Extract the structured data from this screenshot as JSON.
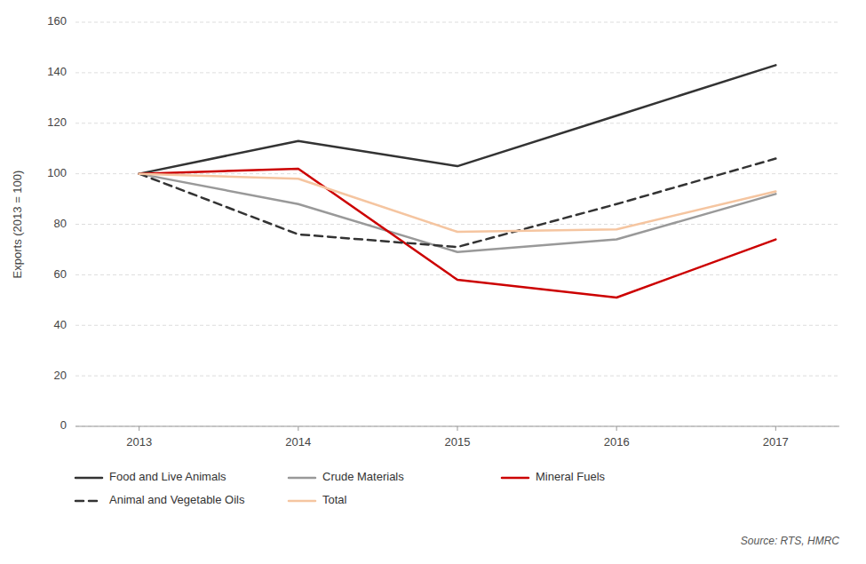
{
  "chart_data": {
    "type": "line",
    "ylabel": "Exports (2013 = 100)",
    "x": [
      2013,
      2014,
      2015,
      2016,
      2017
    ],
    "xlim": [
      2012.6,
      2017.4
    ],
    "xticks": [
      2013,
      2014,
      2015,
      2016,
      2017
    ],
    "ylim": [
      0,
      160
    ],
    "yticks": [
      0,
      20,
      40,
      60,
      80,
      100,
      120,
      140,
      160
    ],
    "grid": true,
    "legend": "bottom",
    "series": [
      {
        "name": "Food and Live Animals",
        "color": "#333333",
        "line_style": "solid",
        "values": [
          100,
          113,
          103,
          123,
          143
        ]
      },
      {
        "name": "Crude Materials",
        "color": "#999999",
        "line_style": "solid",
        "values": [
          100,
          88,
          69,
          74,
          92
        ]
      },
      {
        "name": "Mineral Fuels",
        "color": "#cc0000",
        "line_style": "solid",
        "values": [
          100,
          102,
          58,
          51,
          74
        ]
      },
      {
        "name": "Animal and Vegetable Oils",
        "color": "#333333",
        "line_style": "dashed",
        "values": [
          100,
          76,
          71,
          88,
          106
        ]
      },
      {
        "name": "Total",
        "color": "#f5c5a0",
        "line_style": "solid",
        "values": [
          100,
          98,
          77,
          78,
          93
        ]
      }
    ],
    "annotations": [
      "Source: RTS, HMRC"
    ]
  }
}
